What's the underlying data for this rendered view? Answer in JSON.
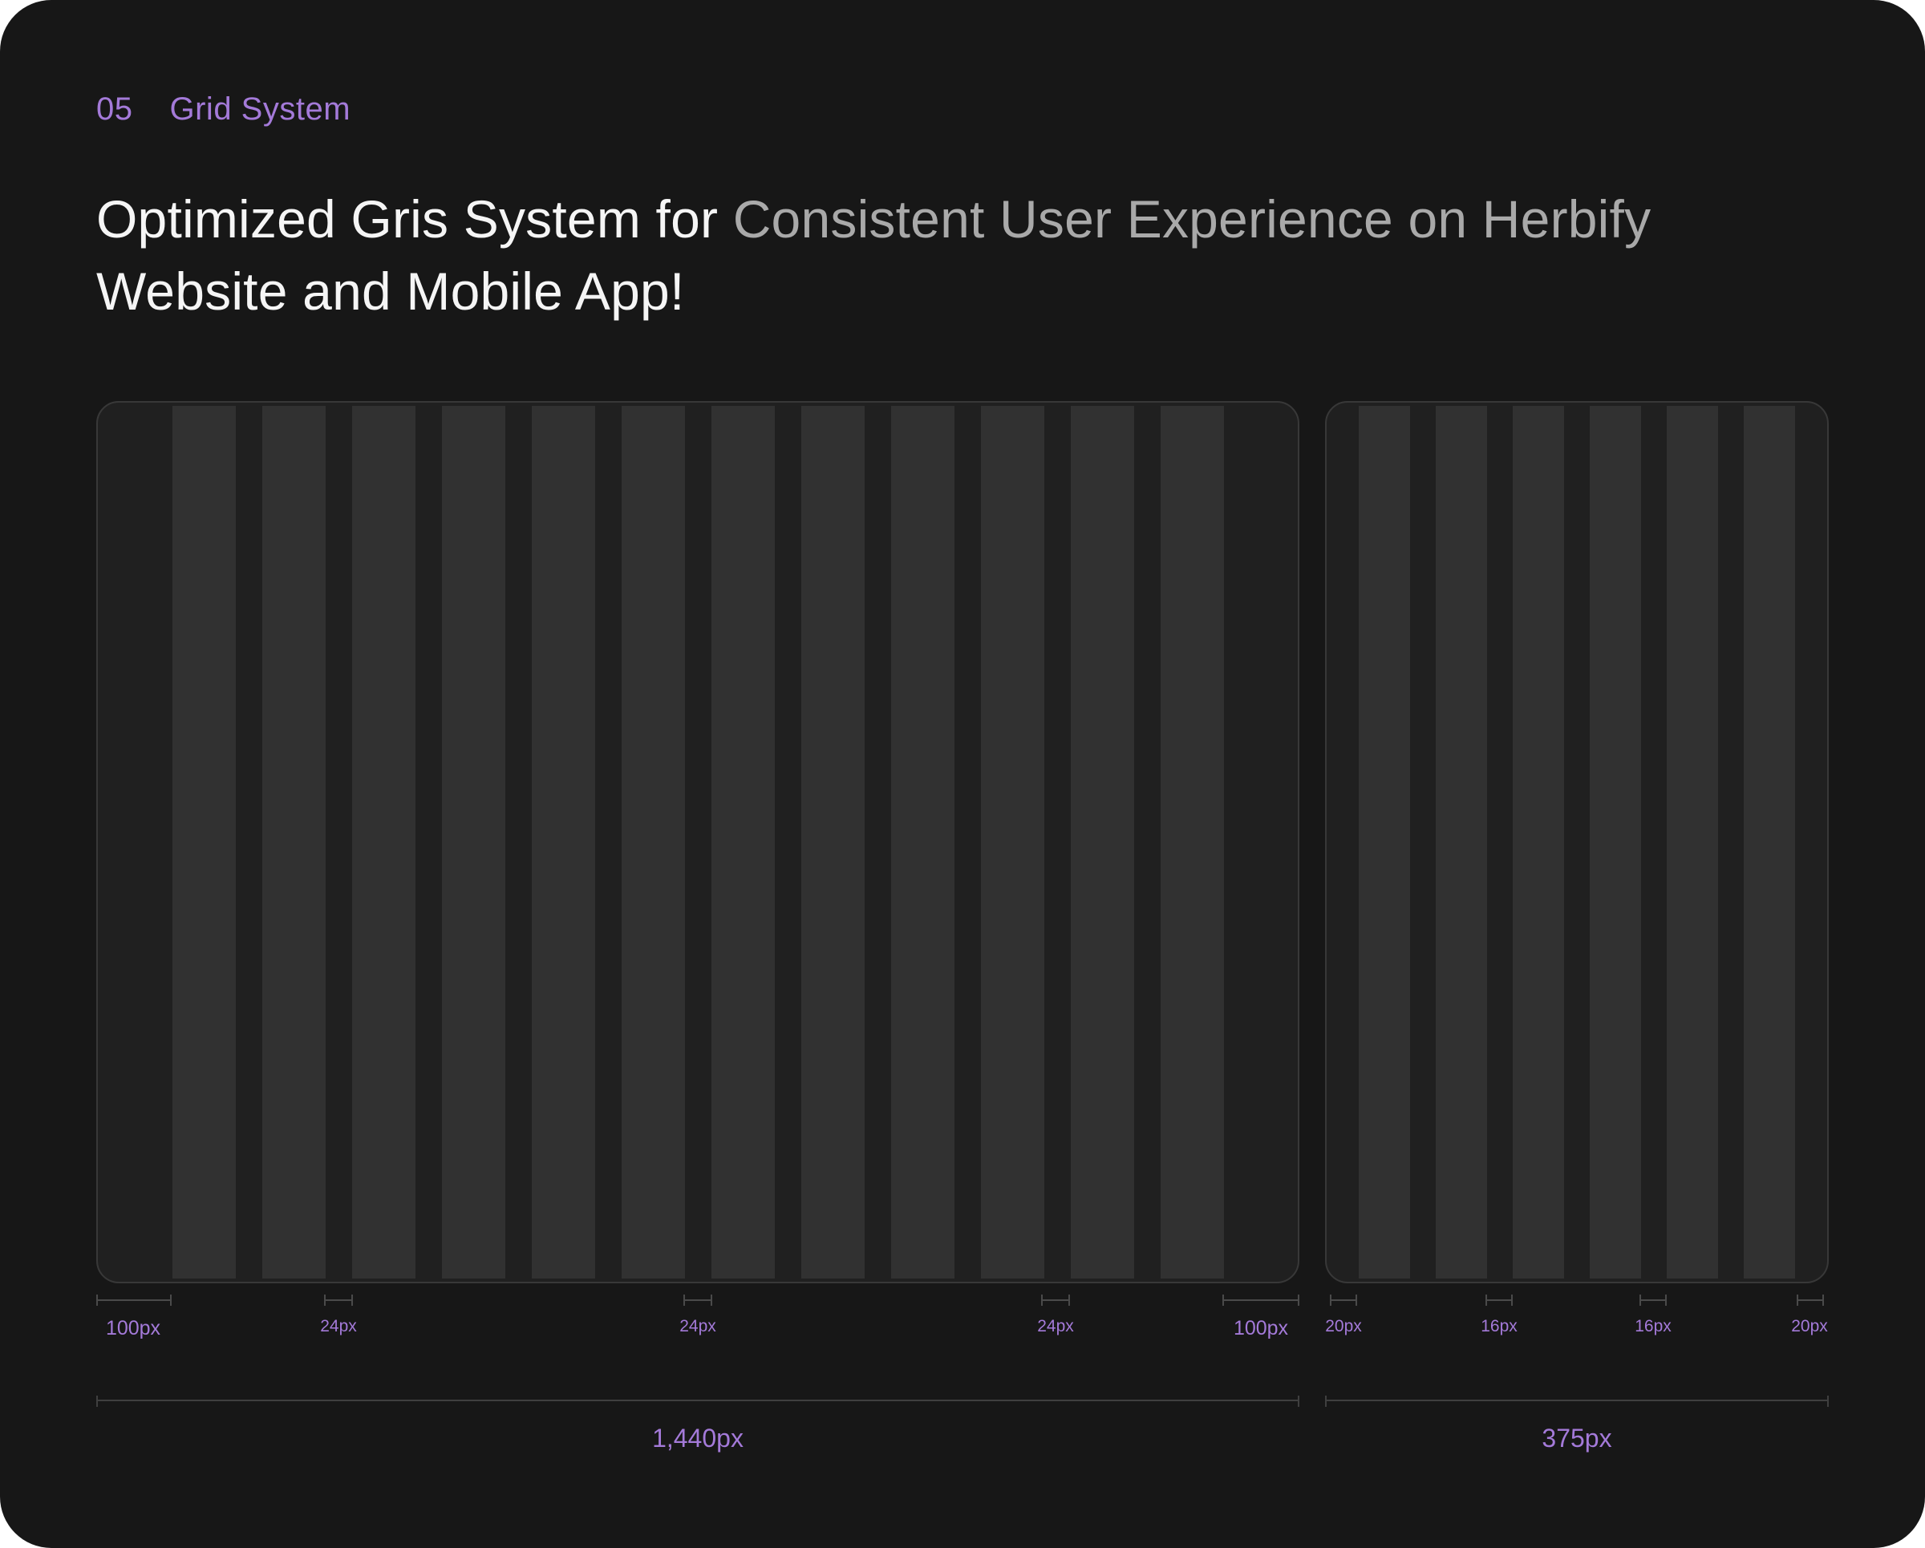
{
  "section": {
    "number": "05",
    "title": "Grid System"
  },
  "headline": {
    "part1": "Optimized Gris System for ",
    "part2": "Consistent User Experience on Herbify",
    "part3": " Website and Mobile App!"
  },
  "desktop_grid": {
    "columns": 12,
    "margin_label": "100px",
    "gutter_label": "24px",
    "width_label": "1,440px"
  },
  "mobile_grid": {
    "columns": 6,
    "margin_label": "20px",
    "gutter_label": "16px",
    "width_label": "375px"
  },
  "colors": {
    "background": "#171717",
    "accent": "#a47ad9",
    "column": "#313131",
    "frame": "#202020"
  }
}
